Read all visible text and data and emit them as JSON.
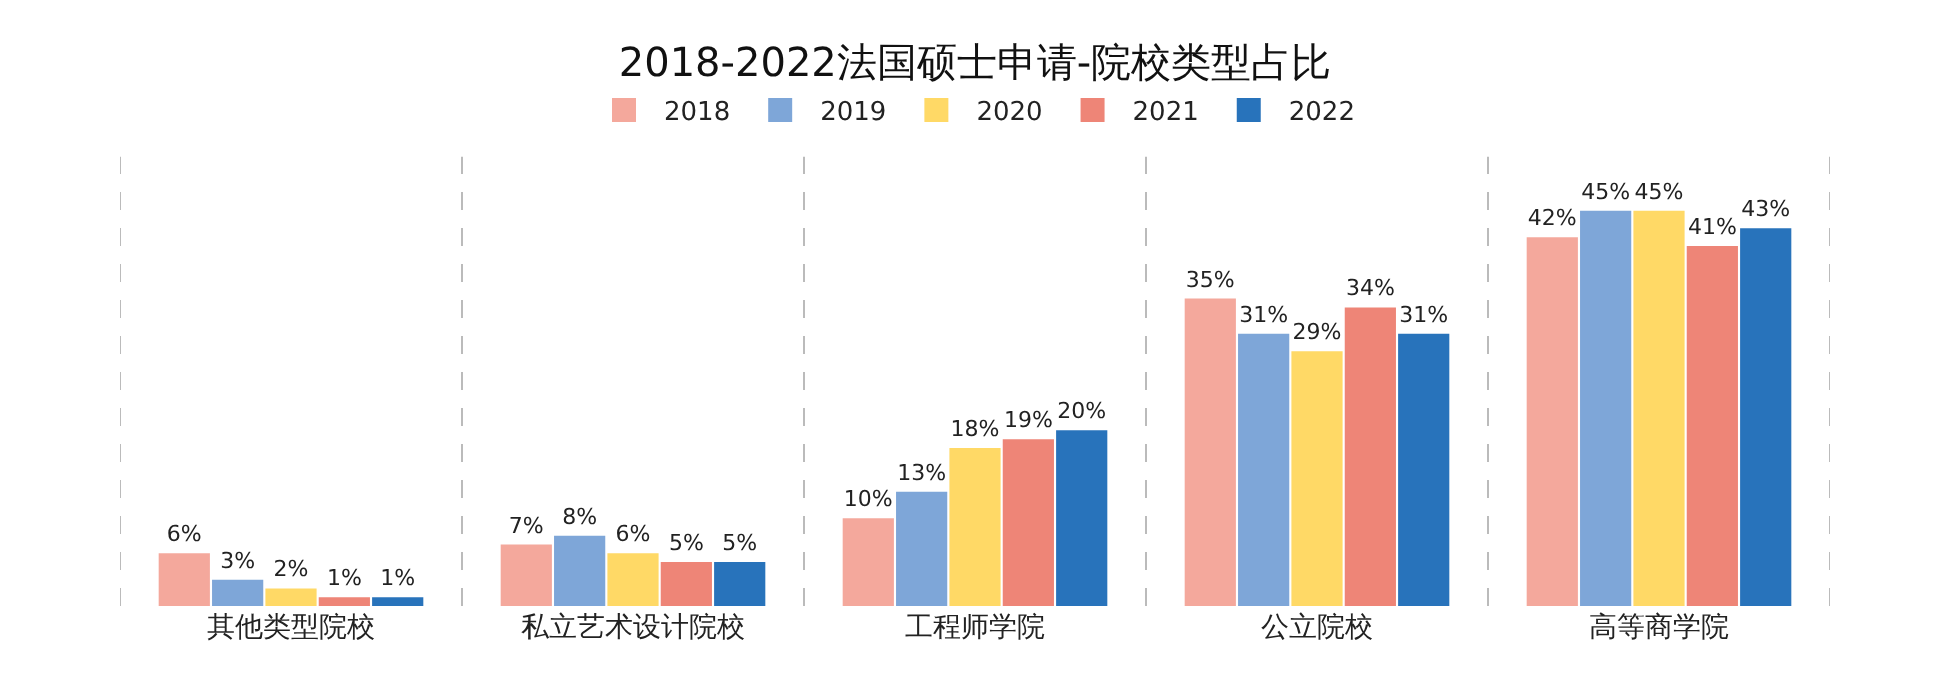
{
  "chart_data": {
    "type": "bar",
    "title": "2018-2022法国硕士申请-院校类型占比",
    "categories": [
      "其他类型院校",
      "私立艺术设计院校",
      "工程师学院",
      "公立院校",
      "高等商学院"
    ],
    "series": [
      {
        "name": "2018",
        "color": "#f4a89c",
        "values": [
          6,
          7,
          10,
          35,
          42
        ],
        "value_labels": [
          "6%",
          "7%",
          "10%",
          "35%",
          "42%"
        ]
      },
      {
        "name": "2019",
        "color": "#7ea6d8",
        "values": [
          3,
          8,
          13,
          31,
          45
        ],
        "value_labels": [
          "3%",
          "8%",
          "13%",
          "31%",
          "45%"
        ]
      },
      {
        "name": "2020",
        "color": "#ffd966",
        "values": [
          2,
          6,
          18,
          29,
          45
        ],
        "value_labels": [
          "2%",
          "6%",
          "18%",
          "29%",
          "45%"
        ]
      },
      {
        "name": "2021",
        "color": "#ee8577",
        "values": [
          1,
          5,
          19,
          34,
          41
        ],
        "value_labels": [
          "1%",
          "5%",
          "19%",
          "34%",
          "41%"
        ]
      },
      {
        "name": "2022",
        "color": "#2873bb",
        "values": [
          1,
          5,
          20,
          31,
          43
        ],
        "value_labels": [
          "1%",
          "5%",
          "20%",
          "31%",
          "43%"
        ]
      }
    ],
    "legend": "top",
    "grid": "x"
  }
}
